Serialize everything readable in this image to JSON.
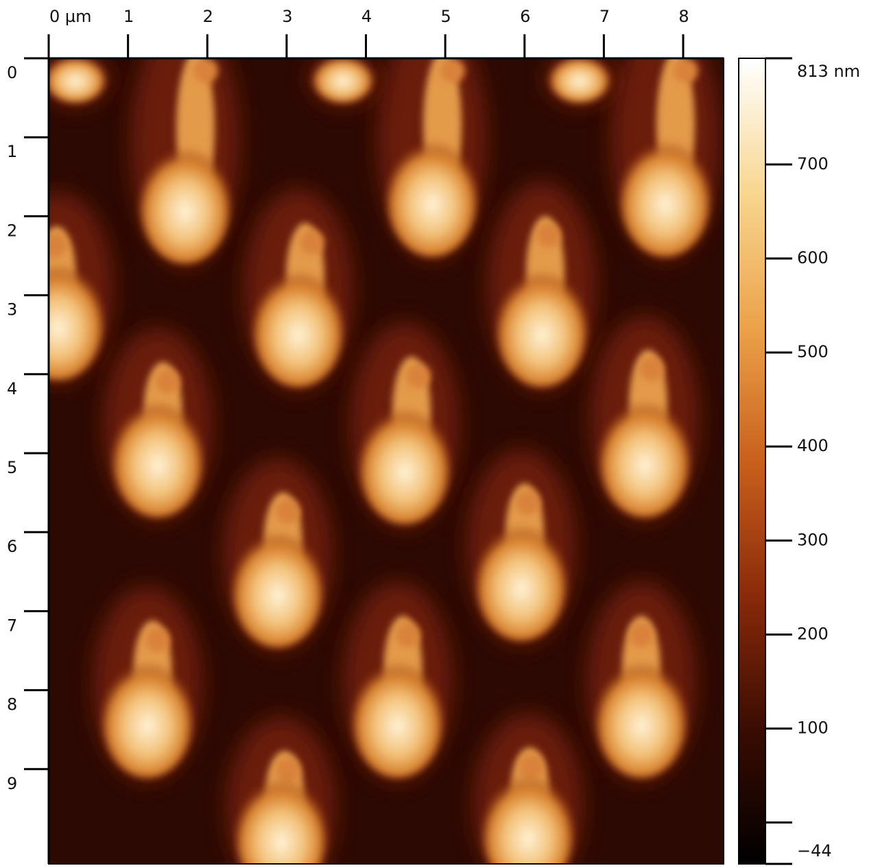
{
  "chart_data": {
    "type": "heatmap",
    "xlim": [
      0,
      8.51
    ],
    "xticks": [
      {
        "value": 0,
        "label": "0 µm"
      },
      1,
      2,
      3,
      4,
      5,
      6,
      7,
      8
    ],
    "ylim": [
      0,
      10.2
    ],
    "yticks": [
      0,
      1,
      2,
      3,
      4,
      5,
      6,
      7,
      8,
      9
    ],
    "colorbar": {
      "lim": [
        -44,
        813
      ],
      "ticks": [
        {
          "value": -44,
          "label": "−44"
        },
        {
          "value": 0,
          "label": null
        },
        100,
        200,
        300,
        400,
        500,
        600,
        700,
        {
          "value": 813,
          "label": "813 nm"
        }
      ],
      "colors": [
        "#000000",
        "#3a0c02",
        "#8a2a0a",
        "#c9601c",
        "#eca24a",
        "#f8d690",
        "#ffffff"
      ]
    }
  }
}
